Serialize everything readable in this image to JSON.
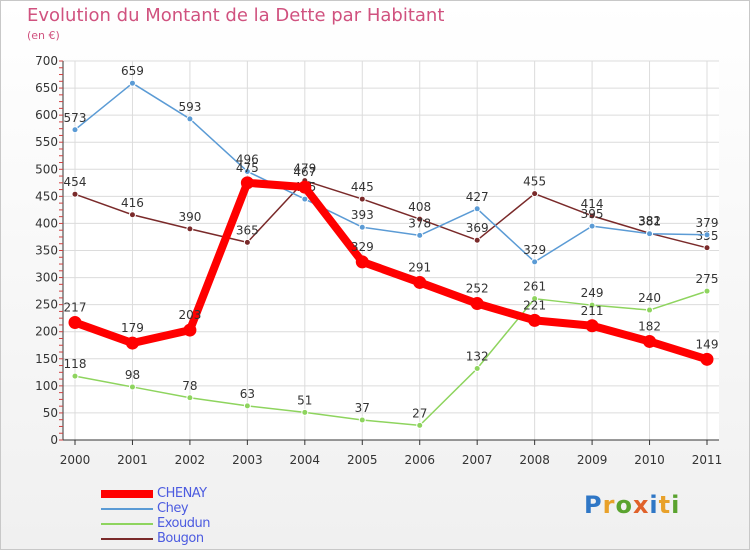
{
  "title": "Evolution du Montant de la Dette par Habitant",
  "unit": "(en €)",
  "logo": {
    "text": "Proxiti",
    "letters": [
      {
        "ch": "P",
        "color": "#2f77c6"
      },
      {
        "ch": "r",
        "color": "#e8a12a"
      },
      {
        "ch": "o",
        "color": "#5aa32f"
      },
      {
        "ch": "x",
        "color": "#e0612a"
      },
      {
        "ch": "i",
        "color": "#2f77c6"
      },
      {
        "ch": "t",
        "color": "#e8a12a"
      },
      {
        "ch": "i",
        "color": "#5aa32f"
      }
    ]
  },
  "chart_data": {
    "type": "line",
    "title": "Evolution du Montant de la Dette par Habitant",
    "subtitle": "(en €)",
    "xlabel": "",
    "ylabel": "",
    "x": [
      "2000",
      "2001",
      "2002",
      "2003",
      "2004",
      "2005",
      "2006",
      "2007",
      "2008",
      "2009",
      "2010",
      "2011"
    ],
    "ylim": [
      0,
      700
    ],
    "yticks": [
      0,
      50,
      100,
      150,
      200,
      250,
      300,
      350,
      400,
      450,
      500,
      550,
      600,
      650,
      700
    ],
    "grid": true,
    "legend_position": "bottom-left",
    "series": [
      {
        "name": "Bougon",
        "color": "#7a2a2a",
        "values": [
          454,
          416,
          390,
          365,
          479,
          445,
          408,
          369,
          455,
          414,
          382,
          355
        ]
      },
      {
        "name": "Exoudun",
        "color": "#8ed45e",
        "values": [
          118,
          98,
          78,
          63,
          51,
          37,
          27,
          132,
          261,
          249,
          240,
          275
        ]
      },
      {
        "name": "Chey",
        "color": "#5b9bd5",
        "values": [
          573,
          659,
          593,
          496,
          445,
          393,
          378,
          427,
          329,
          395,
          381,
          379
        ]
      },
      {
        "name": "CHENAY",
        "color": "#ff0000",
        "values": [
          217,
          179,
          203,
          475,
          467,
          329,
          291,
          252,
          221,
          211,
          182,
          149
        ]
      }
    ]
  },
  "legend": [
    {
      "name": "CHENAY",
      "color": "#ff0000",
      "label_color": "#4c5be0"
    },
    {
      "name": "Chey",
      "color": "#5b9bd5",
      "label_color": "#4c5be0"
    },
    {
      "name": "Exoudun",
      "color": "#8ed45e",
      "label_color": "#4c5be0"
    },
    {
      "name": "Bougon",
      "color": "#7a2a2a",
      "label_color": "#4c5be0"
    }
  ]
}
